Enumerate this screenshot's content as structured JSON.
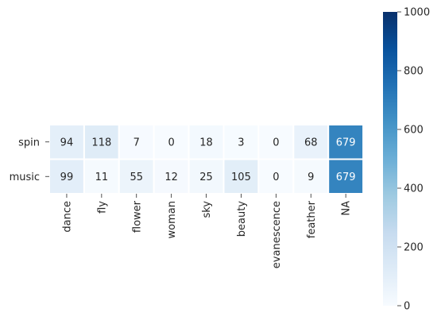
{
  "chart_data": {
    "type": "heatmap",
    "title": "",
    "xlabel": "",
    "ylabel": "",
    "columns": [
      "dance",
      "fly",
      "flower",
      "woman",
      "sky",
      "beauty",
      "evanescence",
      "feather",
      "NA"
    ],
    "rows": [
      "spin",
      "music"
    ],
    "values": [
      [
        94,
        118,
        7,
        0,
        18,
        3,
        0,
        68,
        679
      ],
      [
        99,
        11,
        55,
        12,
        25,
        105,
        0,
        9,
        679
      ]
    ],
    "colorbar": {
      "min": 0,
      "max": 1000,
      "ticks": [
        0,
        200,
        400,
        600,
        800,
        1000
      ],
      "colormap": "Blues"
    },
    "annotations": true,
    "grid": false,
    "cell_separator_color": "#ffffff"
  }
}
